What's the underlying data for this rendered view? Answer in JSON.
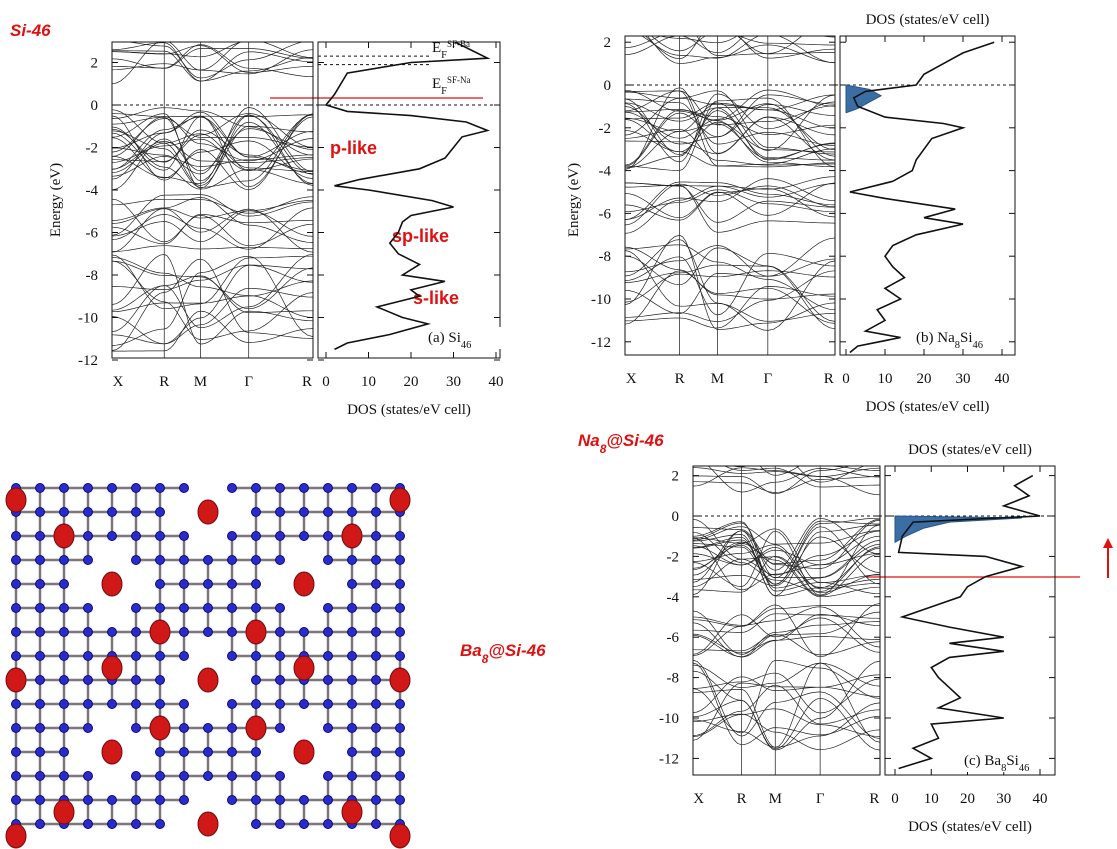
{
  "annotations": {
    "si46": "Si-46",
    "p_like": "p-like",
    "sp_like": "sp-like",
    "s_like": "s-like",
    "na8": [
      {
        "text": "Na"
      },
      {
        "sub": "8"
      },
      {
        "text": "@Si-46"
      }
    ],
    "ba8": [
      {
        "text": "Ba"
      },
      {
        "sub": "8"
      },
      {
        "text": "@Si-46"
      }
    ]
  },
  "panels": [
    {
      "energy_axis": "Energy (eV)",
      "energy_ticks": [
        2,
        0,
        -2,
        -4,
        -6,
        -8,
        -10,
        -12
      ],
      "kpoints": [
        "X",
        "R",
        "M",
        "Γ",
        "R"
      ],
      "dos_ticks": [
        0,
        10,
        20,
        30,
        40
      ],
      "dos_axis_bottom": "DOS (states/eV cell)",
      "label": [
        {
          "text": "(a) Si"
        },
        {
          "sub": "46"
        }
      ],
      "fermi_labels": [
        [
          {
            "text": "E"
          },
          {
            "sub": "F"
          },
          {
            "sup": "SF-Ba"
          }
        ],
        [
          {
            "text": "E"
          },
          {
            "sub": "F"
          },
          {
            "sup": "SF-Na"
          }
        ]
      ],
      "dos": {
        "energy": [
          3,
          2.5,
          2.2,
          2,
          1.5,
          0.5,
          0,
          -0.3,
          -0.5,
          -0.8,
          -1.2,
          -1.5,
          -2,
          -2.5,
          -3,
          -3.5,
          -3.8,
          -4,
          -4.5,
          -4.8,
          -5.2,
          -5.5,
          -6,
          -6.5,
          -7,
          -7.5,
          -8,
          -8.3,
          -8.7,
          -9,
          -9.5,
          -10,
          -10.3,
          -10.8,
          -11.2,
          -11.5
        ],
        "states": [
          30,
          35,
          38,
          20,
          5,
          2,
          0,
          5,
          20,
          33,
          38,
          32,
          30,
          28,
          22,
          8,
          2,
          10,
          25,
          30,
          20,
          18,
          17,
          15,
          17,
          22,
          18,
          28,
          20,
          22,
          12,
          18,
          24,
          15,
          5,
          2
        ]
      }
    },
    {
      "energy_axis": "Energy (eV)",
      "energy_ticks": [
        2,
        0,
        -2,
        -4,
        -6,
        -8,
        -10,
        -12
      ],
      "kpoints": [
        "X",
        "R",
        "M",
        "Γ",
        "R"
      ],
      "dos_ticks": [
        0,
        10,
        20,
        30,
        40
      ],
      "dos_axis_top": "DOS (states/eV cell)",
      "dos_axis_bottom": "DOS (states/eV cell)",
      "label": [
        {
          "text": "(b) Na"
        },
        {
          "sub": "8"
        },
        {
          "text": "Si"
        },
        {
          "sub": "46"
        }
      ],
      "dos": {
        "energy": [
          2,
          1.5,
          1,
          0.5,
          0,
          -0.3,
          -0.6,
          -1,
          -1.5,
          -1.8,
          -2,
          -2.5,
          -3,
          -3.5,
          -4,
          -4.5,
          -5,
          -5.3,
          -5.8,
          -6.2,
          -6.5,
          -7,
          -7.5,
          -8,
          -8.5,
          -9,
          -9.5,
          -10,
          -10.5,
          -11,
          -11.5,
          -11.8,
          -12.2,
          -12.5
        ],
        "states": [
          38,
          30,
          25,
          20,
          18,
          5,
          2,
          3,
          10,
          25,
          30,
          22,
          20,
          18,
          17,
          12,
          1,
          10,
          28,
          20,
          30,
          18,
          12,
          10,
          12,
          15,
          10,
          14,
          8,
          10,
          5,
          14,
          3,
          1
        ]
      },
      "shaded_dos": {
        "energy": [
          0,
          -0.2,
          -0.5,
          -0.8,
          -1.1,
          -1.3
        ],
        "states": [
          0,
          6,
          9,
          6,
          3,
          0
        ]
      }
    },
    {
      "energy_ticks": [
        2,
        0,
        -2,
        -4,
        -6,
        -8,
        -10,
        -12
      ],
      "kpoints": [
        "X",
        "R",
        "M",
        "Γ",
        "R"
      ],
      "dos_ticks": [
        0,
        10,
        20,
        30,
        40
      ],
      "dos_axis_top": "DOS (states/eV cell)",
      "dos_axis_bottom": "DOS (states/eV cell)",
      "label": [
        {
          "text": "(c) Ba"
        },
        {
          "sub": "8"
        },
        {
          "text": "Si"
        },
        {
          "sub": "46"
        }
      ],
      "dos": {
        "energy": [
          2,
          1.5,
          1,
          0.5,
          0.1,
          0,
          -0.3,
          -1,
          -1.8,
          -2,
          -2.5,
          -3,
          -3.5,
          -4,
          -4.5,
          -5,
          -5.5,
          -6,
          -6.3,
          -6.7,
          -7,
          -7.5,
          -8,
          -8.5,
          -9,
          -9.5,
          -10,
          -10.3,
          -11,
          -11.5,
          -12,
          -12.5
        ],
        "states": [
          38,
          33,
          37,
          30,
          38,
          40,
          5,
          2,
          1,
          25,
          35,
          25,
          20,
          18,
          10,
          2,
          15,
          30,
          15,
          30,
          15,
          10,
          12,
          15,
          18,
          12,
          30,
          10,
          12,
          5,
          10,
          1
        ]
      },
      "shaded_dos": {
        "energy": [
          0,
          -0.1,
          -0.3,
          -0.6,
          -1,
          -1.3
        ],
        "states": [
          0,
          35,
          15,
          8,
          3,
          0
        ]
      }
    }
  ]
}
